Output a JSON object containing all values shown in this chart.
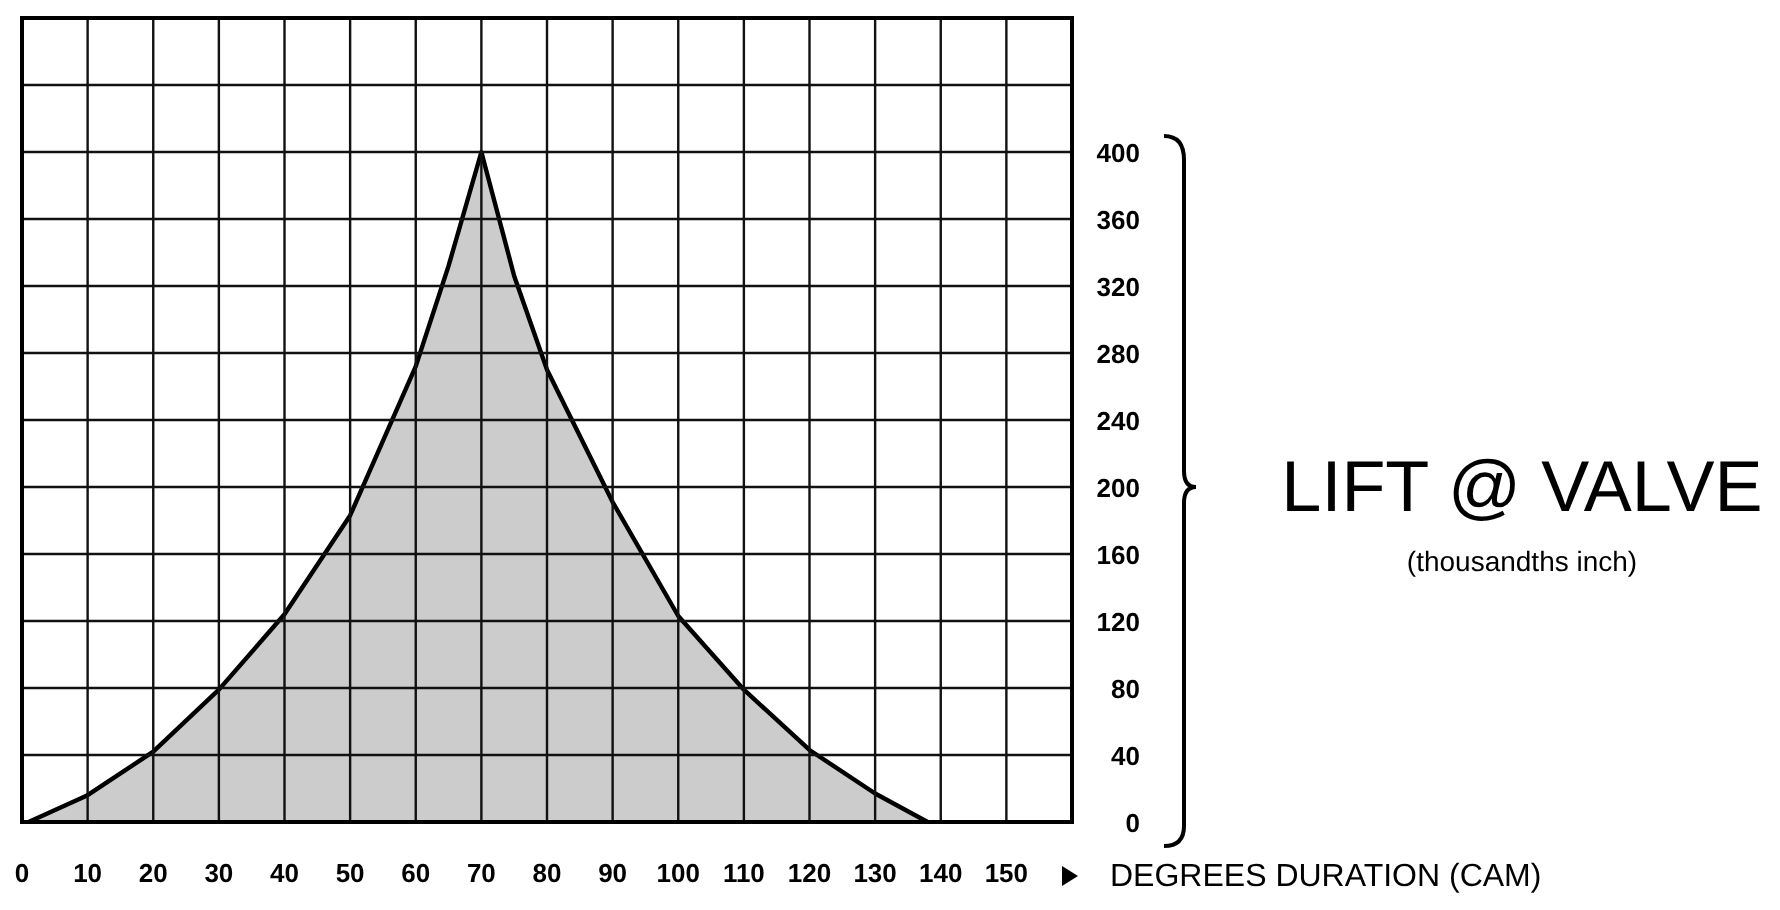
{
  "chart_data": {
    "type": "area",
    "xlabel": "DEGREES DURATION (CAM)",
    "ylabel": "LIFT @ VALVE\n(thousandths inch)",
    "x": [
      1,
      10,
      20,
      30,
      40,
      50,
      60,
      65,
      70,
      75,
      80,
      90,
      100,
      110,
      120,
      130,
      138
    ],
    "series": [
      {
        "color": "#cccccc",
        "values": [
          0,
          16,
          42,
          79,
          124,
          183,
          272,
          332,
          400,
          326,
          270,
          191,
          123,
          79,
          43,
          17,
          0
        ]
      }
    ],
    "xlim": [
      0,
      160
    ],
    "xticks": [
      0,
      10,
      20,
      30,
      40,
      50,
      60,
      70,
      80,
      90,
      100,
      110,
      120,
      130,
      140,
      150
    ],
    "ylim": [
      0,
      480
    ],
    "yticks": [
      0,
      40,
      80,
      120,
      160,
      200,
      240,
      280,
      320,
      360,
      400,
      {
        "value": 440,
        "label": null
      },
      {
        "value": 480,
        "label": null
      }
    ],
    "grid": true
  }
}
